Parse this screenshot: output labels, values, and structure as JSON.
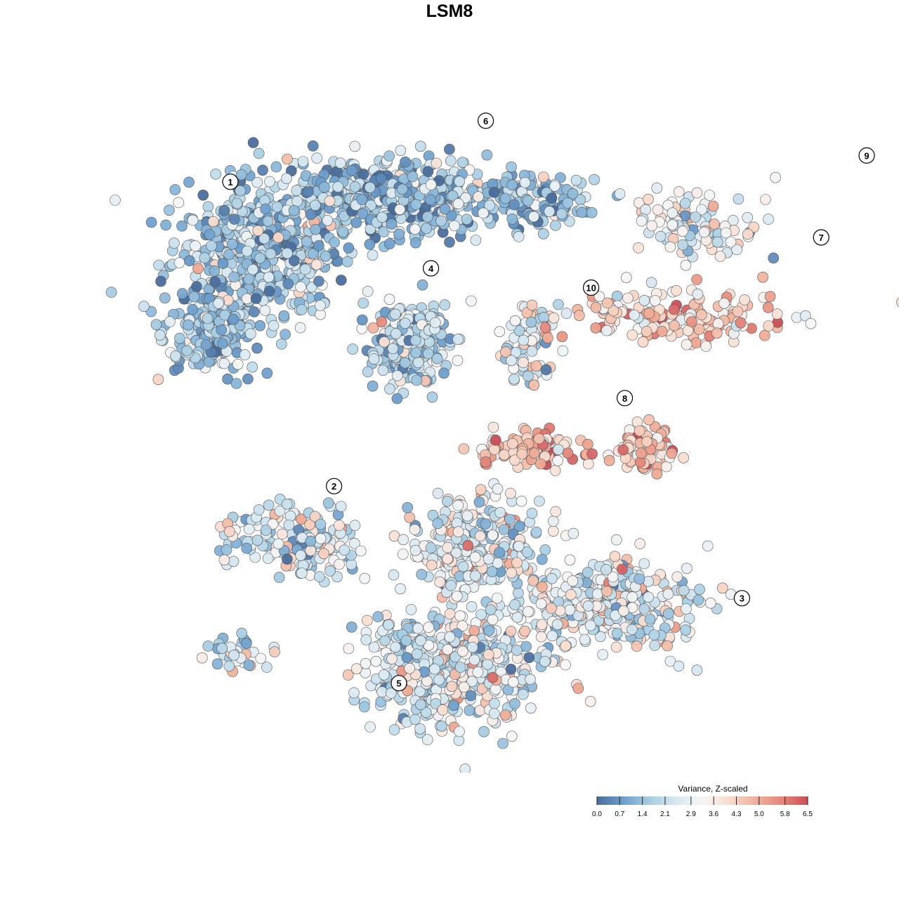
{
  "chart_data": {
    "type": "scatter",
    "title": "LSM8",
    "colorbar": {
      "title": "Variance, Z-scaled",
      "ticks": [
        "0.0",
        "0.7",
        "1.4",
        "2.1",
        "2.9",
        "3.6",
        "4.3",
        "5.0",
        "5.8",
        "6.5"
      ],
      "range": [
        0.0,
        6.5
      ],
      "colors": [
        "#4a6e9c",
        "#6d9fcd",
        "#a6cde3",
        "#d6e8f1",
        "#f6f6f6",
        "#f9ddcf",
        "#f0b19a",
        "#e5887a",
        "#c94e57"
      ]
    },
    "clusters": [
      {
        "label": "1",
        "x": -2.35,
        "y": 3.12,
        "mean_value": 1.5
      },
      {
        "label": "2",
        "x": -1.12,
        "y": -0.82,
        "mean_value": 2.3
      },
      {
        "label": "3",
        "x": 3.72,
        "y": -2.27,
        "mean_value": 2.6
      },
      {
        "label": "4",
        "x": 0.03,
        "y": 2.0,
        "mean_value": 2.0
      },
      {
        "label": "5",
        "x": -0.35,
        "y": -3.37,
        "mean_value": 2.5
      },
      {
        "label": "6",
        "x": 0.68,
        "y": 3.91,
        "mean_value": 1.4
      },
      {
        "label": "7",
        "x": 4.66,
        "y": 2.4,
        "mean_value": 4.1
      },
      {
        "label": "8",
        "x": 2.33,
        "y": 0.32,
        "mean_value": 4.4
      },
      {
        "label": "9",
        "x": 5.2,
        "y": 3.46,
        "mean_value": 2.8
      },
      {
        "label": "10",
        "x": 1.93,
        "y": 1.75,
        "mean_value": 2.7
      }
    ]
  }
}
